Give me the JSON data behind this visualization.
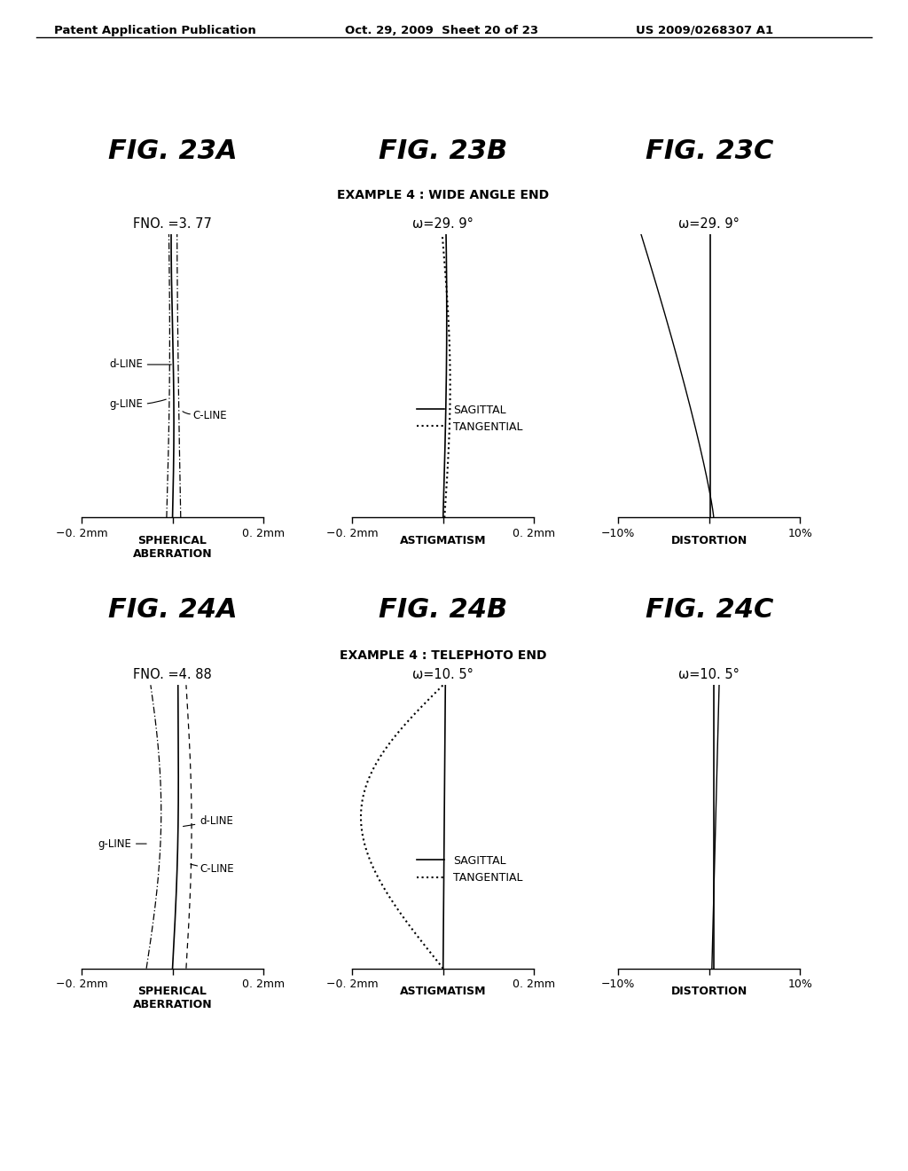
{
  "header_left": "Patent Application Publication",
  "header_mid": "Oct. 29, 2009  Sheet 20 of 23",
  "header_right": "US 2009/0268307 A1",
  "fig_titles_row1": [
    "FIG. 23A",
    "FIG. 23B",
    "FIG. 23C"
  ],
  "fig_titles_row2": [
    "FIG. 24A",
    "FIG. 24B",
    "FIG. 24C"
  ],
  "subtitle_row1": "EXAMPLE 4 : WIDE ANGLE END",
  "subtitle_row2": "EXAMPLE 4 : TELEPHOTO END",
  "top_labels_row1": [
    "FNO. =3. 77",
    "ω=29. 9°",
    "ω=29. 9°"
  ],
  "top_labels_row2": [
    "FNO. =4. 88",
    "ω=10. 5°",
    "ω=10. 5°"
  ],
  "xlabels_sph": [
    "−0. 2mm",
    "0. 2mm"
  ],
  "xlabels_ast": [
    "−0. 2mm",
    "0. 2mm"
  ],
  "xlabels_dist": [
    "−10%",
    "10%"
  ],
  "ylabels_bottom": [
    "SPHERICAL\nABERRATION",
    "ASTIGMATISM",
    "DISTORTION"
  ],
  "background_color": "#ffffff"
}
